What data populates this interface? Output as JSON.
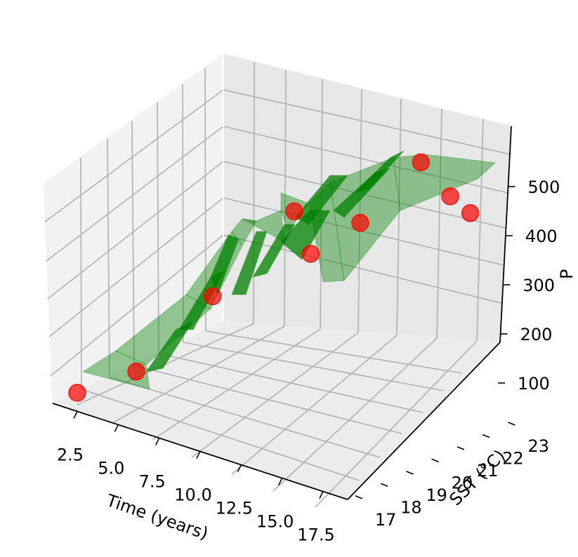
{
  "chart_data": {
    "type": "scatter",
    "projection": "3d",
    "title": "",
    "xlabel": "Time (years)",
    "ylabel": "SST (°C)",
    "zlabel": "P",
    "xlim": [
      1.0,
      19.0
    ],
    "ylim": [
      16.7,
      23.4
    ],
    "zlim": [
      30,
      580
    ],
    "x_ticks": [
      "2.5",
      "5.0",
      "7.5",
      "10.0",
      "12.5",
      "15.0",
      "17.5"
    ],
    "y_ticks": [
      "17",
      "18",
      "19",
      "20",
      "21",
      "22",
      "23"
    ],
    "z_ticks": [
      "100",
      "200",
      "300",
      "400",
      "500"
    ],
    "grid": true,
    "series": [
      {
        "type": "scatter",
        "color": "#ff0000",
        "alpha": 0.7,
        "points": [
          {
            "x": 2,
            "y": 17.0,
            "z": 55
          },
          {
            "x": 4,
            "y": 18.0,
            "z": 95
          },
          {
            "x": 6,
            "y": 19.6,
            "z": 230
          },
          {
            "x": 8,
            "y": 21.4,
            "z": 380
          },
          {
            "x": 10,
            "y": 20.8,
            "z": 330
          },
          {
            "x": 12,
            "y": 21.4,
            "z": 400
          },
          {
            "x": 14,
            "y": 22.4,
            "z": 520
          },
          {
            "x": 16,
            "y": 22.3,
            "z": 475
          },
          {
            "x": 18,
            "y": 21.8,
            "z": 475
          }
        ]
      },
      {
        "type": "surface",
        "color": "#008000",
        "alpha": 0.4
      }
    ]
  }
}
